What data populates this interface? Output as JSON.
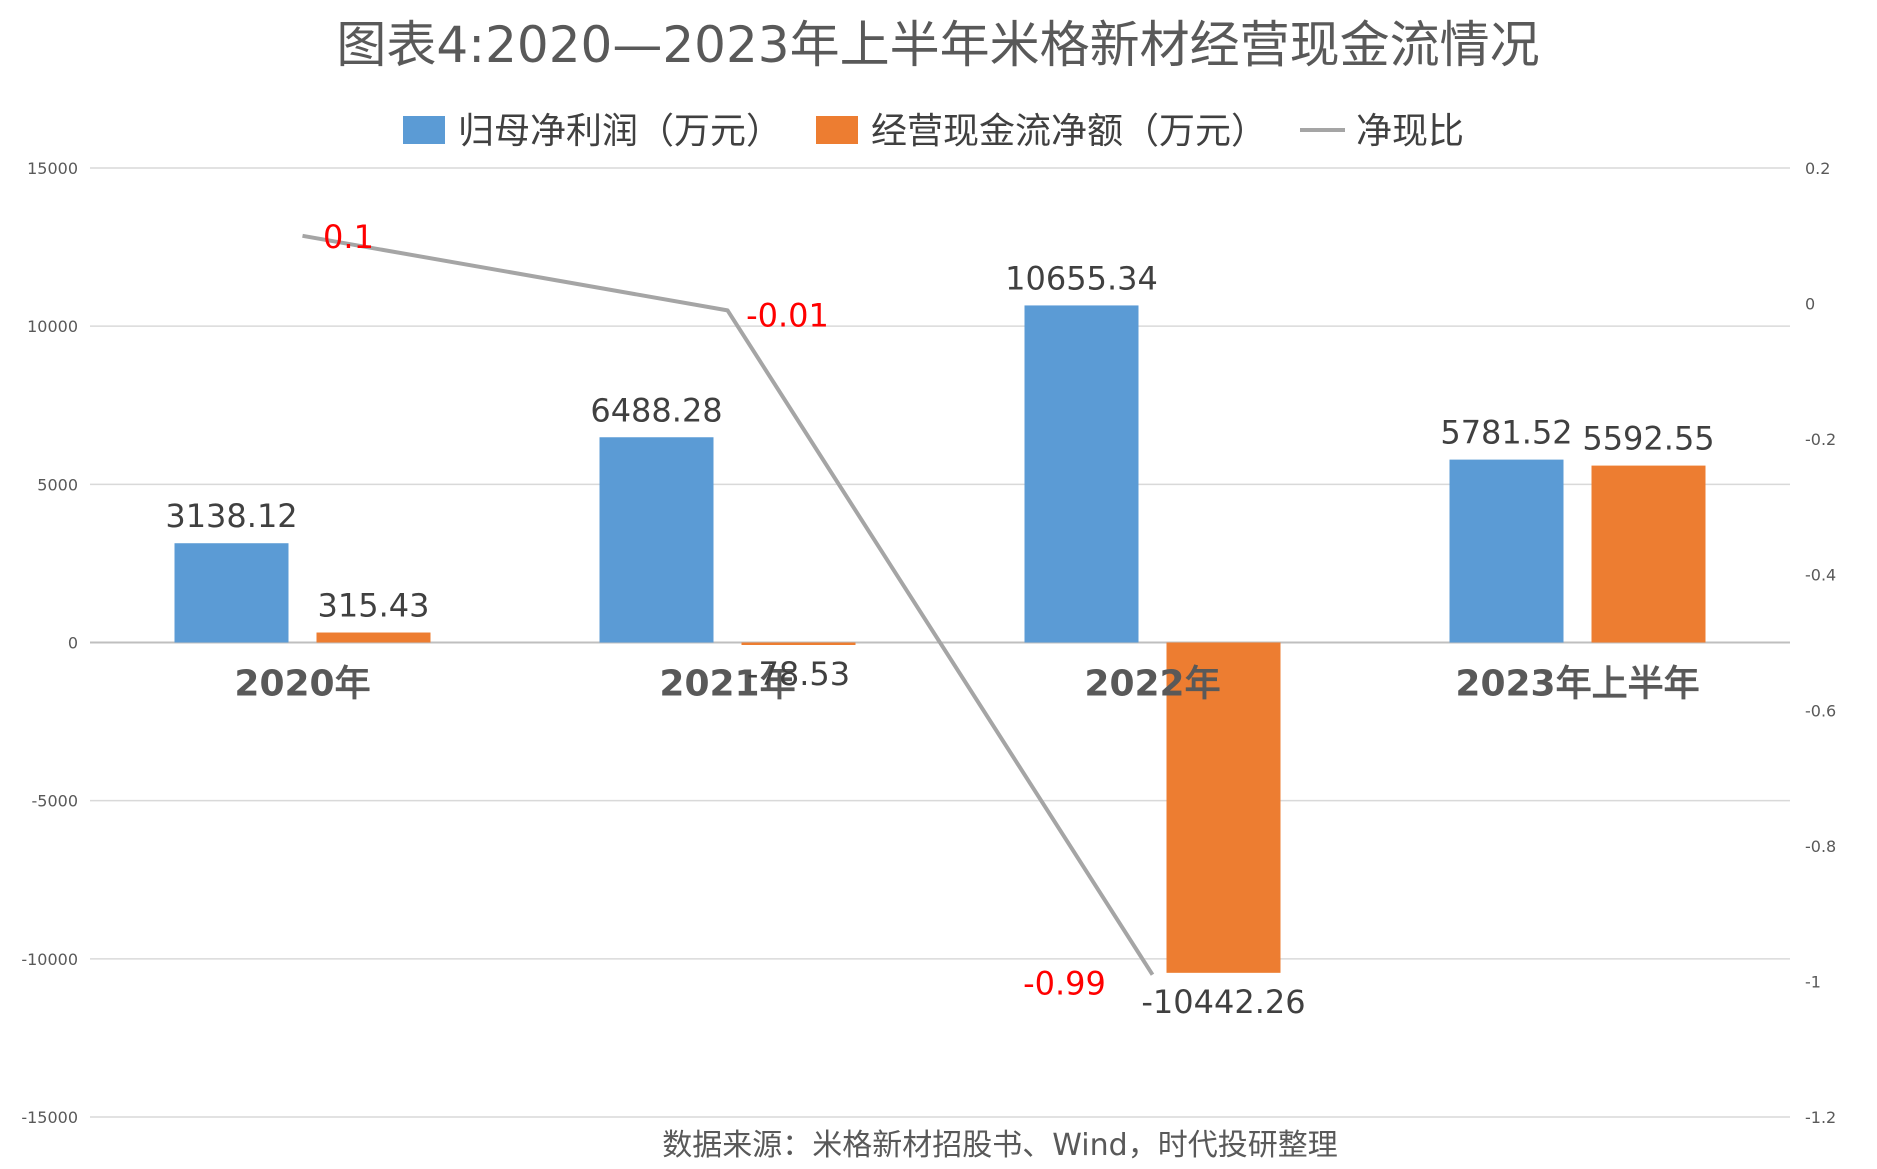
{
  "chart_data": {
    "type": "bar",
    "title": "图表4:2020—2023年上半年米格新材经营现金流情况",
    "categories": [
      "2020年",
      "2021年",
      "2022年",
      "2023年上半年"
    ],
    "series": [
      {
        "name": "归母净利润（万元）",
        "kind": "bar",
        "axis": "left",
        "color": "#5b9bd5",
        "values": [
          3138.12,
          6488.28,
          10655.34,
          5781.52
        ],
        "labels": [
          "3138.12",
          "6488.28",
          "10655.34",
          "5781.52"
        ]
      },
      {
        "name": "经营现金流净额（万元）",
        "kind": "bar",
        "axis": "left",
        "color": "#ed7d31",
        "values": [
          315.43,
          -78.53,
          -10442.26,
          5592.55
        ],
        "labels": [
          "315.43",
          "-78.53",
          "-10442.26",
          "5592.55"
        ]
      },
      {
        "name": "净现比",
        "kind": "line",
        "axis": "right",
        "color": "#a5a5a5",
        "values": [
          0.1,
          -0.01,
          -0.99,
          null
        ],
        "labels": [
          "0.1",
          "-0.01",
          "-0.99",
          ""
        ]
      }
    ],
    "y_left": {
      "min": -15000,
      "max": 15000,
      "step": 5000,
      "ticks": [
        "15000",
        "10000",
        "5000",
        "0",
        "-5000",
        "-10000",
        "-15000"
      ]
    },
    "y_right": {
      "min": -1.2,
      "max": 0.2,
      "step": 0.2,
      "ticks": [
        "0.2",
        "0",
        "-0.2",
        "-0.4",
        "-0.6",
        "-0.8",
        "-1",
        "-1.2"
      ]
    },
    "grid": true,
    "legend_position": "top"
  },
  "source": "数据来源：米格新材招股书、Wind，时代投研整理"
}
